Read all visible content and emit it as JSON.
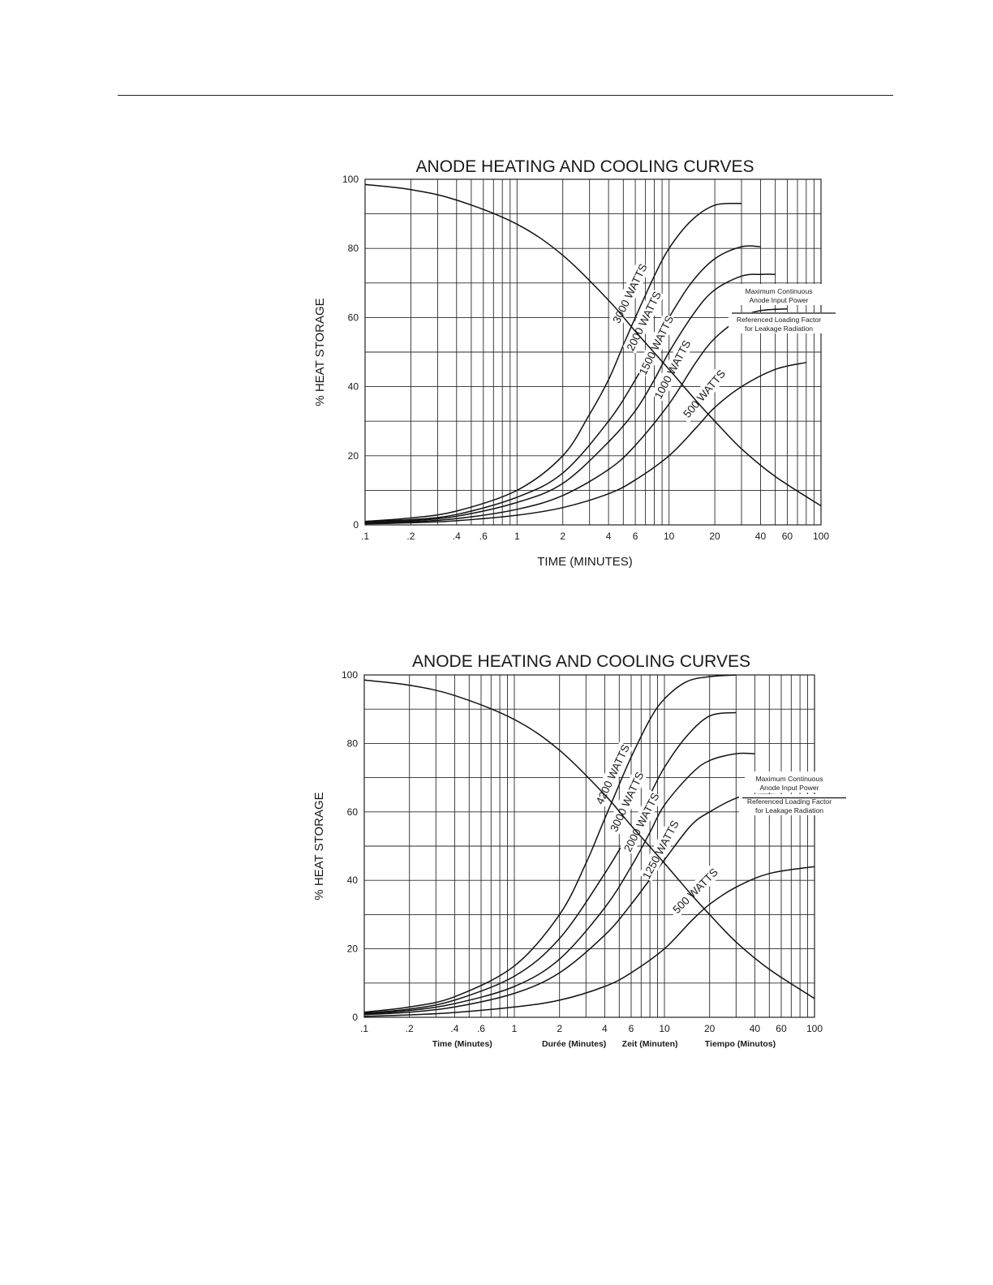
{
  "chart_data": [
    {
      "type": "line",
      "title": "ANODE HEATING AND COOLING CURVES",
      "xlabel": "TIME (MINUTES)",
      "ylabel": "% HEAT STORAGE",
      "x_scale": "log",
      "xlim": [
        0.1,
        100
      ],
      "ylim": [
        0,
        100
      ],
      "grid": true,
      "xtick_labels": [
        ".1",
        ".2",
        ".4",
        ".6",
        "1",
        "2",
        "4",
        "6",
        "10",
        "20",
        "40",
        "60",
        "100"
      ],
      "ytick_labels": [
        "0",
        "20",
        "40",
        "60",
        "80",
        "100"
      ],
      "annotations": [
        "Maximum Continuous",
        "Anode Input Power",
        "Referenced Loading Factor",
        "for Leakage Radiation"
      ],
      "series": [
        {
          "name": "3000 WATTS",
          "label_angle": -64,
          "label_at": [
            5.5,
            67
          ],
          "x": [
            0.1,
            0.2,
            0.4,
            1,
            2,
            3,
            4,
            5,
            6,
            8,
            10,
            14,
            20,
            30
          ],
          "y": [
            1,
            2,
            4,
            10,
            20,
            32,
            42,
            52,
            60,
            72,
            80,
            88,
            92.5,
            93
          ]
        },
        {
          "name": "2000 WATTS",
          "label_angle": -64,
          "label_at": [
            6.8,
            59
          ],
          "x": [
            0.1,
            0.2,
            0.4,
            1,
            2,
            4,
            6,
            8,
            10,
            14,
            20,
            30,
            40
          ],
          "y": [
            1,
            1.5,
            3,
            8,
            15,
            30,
            42,
            52,
            60,
            70,
            77,
            80.5,
            80.5
          ]
        },
        {
          "name": "1500 WATTS",
          "label_angle": -64,
          "label_at": [
            8.2,
            52
          ],
          "x": [
            0.1,
            0.2,
            0.4,
            1,
            2,
            4,
            6,
            8,
            10,
            15,
            20,
            30,
            40,
            50
          ],
          "y": [
            0.7,
            1.2,
            2.5,
            6.5,
            12,
            24,
            33,
            42,
            50,
            62,
            68,
            72,
            72.5,
            72.5
          ]
        },
        {
          "name": "1000 WATTS",
          "label_angle": -62,
          "label_at": [
            10.5,
            45
          ],
          "x": [
            0.1,
            0.2,
            0.4,
            1,
            2,
            4,
            6,
            10,
            15,
            20,
            30,
            40,
            60
          ],
          "y": [
            0.5,
            0.9,
            1.8,
            4.5,
            8.5,
            16,
            23,
            35,
            47,
            54,
            60,
            62,
            62.5
          ]
        },
        {
          "name": "500 WATTS",
          "label_angle": -50,
          "label_at": [
            17,
            38
          ],
          "x": [
            0.1,
            0.2,
            0.4,
            1,
            2,
            4,
            6,
            10,
            15,
            20,
            30,
            50,
            80
          ],
          "y": [
            0.3,
            0.6,
            1.2,
            2.8,
            5,
            9,
            13,
            20,
            28,
            34,
            40,
            45,
            47
          ]
        },
        {
          "name": "cooling",
          "x": [
            0.1,
            0.2,
            0.4,
            1,
            2,
            4,
            6,
            10,
            15,
            20,
            30,
            50,
            100
          ],
          "y": [
            98.5,
            97,
            94,
            87,
            78,
            65,
            56,
            45,
            36,
            30,
            22,
            14,
            5.5
          ]
        }
      ]
    },
    {
      "type": "line",
      "title": "ANODE HEATING AND COOLING CURVES",
      "xlabel": "",
      "ylabel": "% HEAT STORAGE",
      "x_scale": "log",
      "xlim": [
        0.1,
        100
      ],
      "ylim": [
        0,
        100
      ],
      "grid": true,
      "xtick_labels": [
        ".1",
        ".2",
        ".4",
        ".6",
        "1",
        "2",
        "4",
        "6",
        "10",
        "20",
        "40",
        "60",
        "100"
      ],
      "ytick_labels": [
        "0",
        "20",
        "40",
        "60",
        "80",
        "100"
      ],
      "x_axis_labels": [
        "Time (Minutes)",
        "Durée (Minutes)",
        "Zeit (Minuten)",
        "Tiempo (Minutos)"
      ],
      "annotations": [
        "Maximum Continuous",
        "Anode Input Power",
        "Referenced Loading Factor",
        "for Leakage Radiation"
      ],
      "series": [
        {
          "name": "4200 WATTS",
          "label_angle": -65,
          "label_at": [
            4.5,
            71
          ],
          "x": [
            0.1,
            0.2,
            0.4,
            1,
            2,
            3,
            4,
            5,
            6,
            8,
            10,
            14,
            20,
            30
          ],
          "y": [
            1.5,
            3,
            6,
            15,
            30,
            45,
            58,
            68,
            76,
            87,
            93,
            98,
            99.5,
            100
          ]
        },
        {
          "name": "3000 WATTS",
          "label_angle": -65,
          "label_at": [
            5.6,
            63
          ],
          "x": [
            0.1,
            0.2,
            0.4,
            1,
            2,
            4,
            6,
            8,
            10,
            14,
            20,
            30
          ],
          "y": [
            1.2,
            2.4,
            5,
            12,
            23,
            42,
            55,
            65,
            73,
            82,
            88,
            89
          ]
        },
        {
          "name": "2000 WATTS",
          "label_angle": -63,
          "label_at": [
            7,
            57
          ],
          "x": [
            0.1,
            0.2,
            0.4,
            1,
            2,
            4,
            6,
            8,
            10,
            15,
            20,
            30,
            40
          ],
          "y": [
            1,
            2,
            4,
            9,
            17,
            32,
            44,
            54,
            62,
            71,
            75,
            77,
            77
          ]
        },
        {
          "name": "1250 WATTS",
          "label_angle": -62,
          "label_at": [
            9.4,
            49
          ],
          "x": [
            0.1,
            0.2,
            0.4,
            1,
            2,
            4,
            6,
            10,
            15,
            20,
            30,
            40,
            60
          ],
          "y": [
            0.8,
            1.5,
            3,
            7,
            13,
            24,
            33,
            46,
            56,
            60,
            64,
            65,
            65
          ]
        },
        {
          "name": "500 WATTS",
          "label_angle": -45,
          "label_at": [
            16,
            37
          ],
          "x": [
            0.1,
            0.2,
            0.4,
            1,
            2,
            4,
            6,
            10,
            15,
            20,
            30,
            50,
            100
          ],
          "y": [
            0.3,
            0.7,
            1.4,
            3,
            5,
            9,
            13,
            20,
            28,
            33,
            38,
            42,
            44
          ]
        },
        {
          "name": "cooling",
          "x": [
            0.1,
            0.2,
            0.4,
            1,
            2,
            4,
            6,
            10,
            15,
            20,
            30,
            50,
            100
          ],
          "y": [
            98.5,
            97,
            94,
            87,
            78,
            65,
            56,
            45,
            36,
            30,
            22,
            14,
            5.5
          ]
        }
      ]
    }
  ]
}
